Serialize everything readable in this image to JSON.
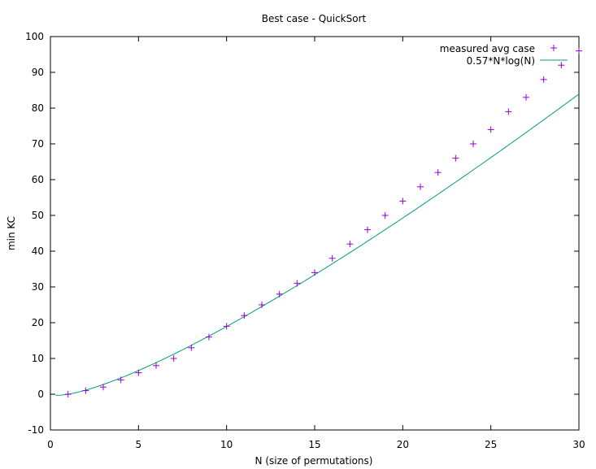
{
  "chart_data": {
    "type": "scatter",
    "title": "Best case - QuickSort",
    "xlabel": "N (size of permutations)",
    "ylabel": "min KC",
    "xlim": [
      0,
      30
    ],
    "ylim": [
      -10,
      100
    ],
    "x_ticks": [
      0,
      5,
      10,
      15,
      20,
      25,
      30
    ],
    "y_ticks": [
      -10,
      0,
      10,
      20,
      30,
      40,
      50,
      60,
      70,
      80,
      90,
      100
    ],
    "grid": false,
    "legend_position": "top-right",
    "series": [
      {
        "name": "measured avg case",
        "style": "points",
        "marker": "plus",
        "color": "#9400d3",
        "x": [
          1,
          2,
          3,
          4,
          5,
          6,
          7,
          8,
          9,
          10,
          11,
          12,
          13,
          14,
          15,
          16,
          17,
          18,
          19,
          20,
          21,
          22,
          23,
          24,
          25,
          26,
          27,
          28,
          29,
          30
        ],
        "y": [
          0,
          1,
          2,
          4,
          6,
          8,
          10,
          13,
          16,
          19,
          22,
          25,
          28,
          31,
          34,
          38,
          42,
          46,
          50,
          54,
          58,
          62,
          66,
          70,
          74,
          79,
          83,
          88,
          92,
          96
        ]
      },
      {
        "name": "0.57*N*log(N)",
        "style": "line",
        "color": "#009e73",
        "function": "0.57*N*log2(N)",
        "x_range": [
          0.3,
          30
        ]
      }
    ]
  }
}
